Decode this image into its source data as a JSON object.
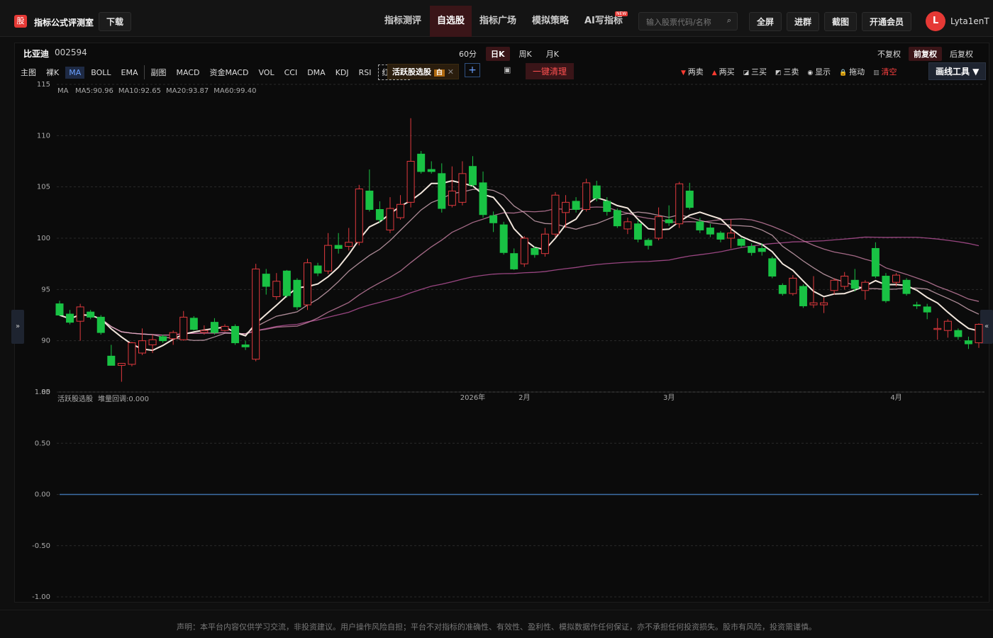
{
  "header": {
    "logo": "股",
    "app_name": "指标公式评测室",
    "download": "下载",
    "nav": [
      "指标测评",
      "自选股",
      "指标广场",
      "模拟策略",
      "AI写指标"
    ],
    "nav_active": 1,
    "nav_badge": "NEW",
    "search_placeholder": "输入股票代码/名称",
    "buttons": [
      "全屏",
      "进群",
      "截图",
      "开通会员"
    ],
    "user_initial": "L",
    "username": "Lyta1enT"
  },
  "toolbar": {
    "stock_name": "比亚迪",
    "stock_code": "002594",
    "periods": [
      "60分",
      "日K",
      "周K",
      "月K"
    ],
    "period_active": 1,
    "adjust": [
      "不复权",
      "前复权",
      "后复权"
    ],
    "adjust_active": 1,
    "indicators": [
      "主图",
      "裸K",
      "MA",
      "BOLL",
      "EMA",
      "副图",
      "MACD",
      "资金MACD",
      "VOL",
      "CCI",
      "DMA",
      "KDJ",
      "RSI",
      "红绿箭"
    ],
    "indicator_active": 2,
    "active_tag": "活跃股选股",
    "active_tag_badge": "白",
    "clear": "一键清理",
    "tools": [
      "两卖",
      "两买",
      "三买",
      "三卖",
      "显示",
      "拖动",
      "清空"
    ],
    "draw_tools": "画线工具 ▼"
  },
  "chart_data": {
    "type": "candlestick",
    "up_color": "#e0393e",
    "down_color": "#19c244",
    "ma_title": "MA",
    "ma_legend": [
      {
        "label": "MA5:90.96",
        "color": "#f2e6dc"
      },
      {
        "label": "MA10:92.65",
        "color": "#e6b8c8"
      },
      {
        "label": "MA20:93.87",
        "color": "#d889b0"
      },
      {
        "label": "MA60:99.40",
        "color": "#c85aa8"
      }
    ],
    "ylim": [
      85,
      115
    ],
    "yticks": [
      85,
      90,
      95,
      100,
      105,
      110,
      115
    ],
    "grid": true,
    "categories": [
      null,
      null,
      null,
      null,
      null,
      null,
      null,
      null,
      null,
      null,
      null,
      null,
      null,
      null,
      null,
      null,
      null,
      null,
      null,
      null,
      null,
      null,
      null,
      null,
      null,
      null,
      null,
      null,
      null,
      null,
      null,
      null,
      null,
      null,
      null,
      null,
      null,
      null,
      null,
      null,
      "2026年",
      null,
      null,
      null,
      null,
      "2月",
      null,
      null,
      null,
      null,
      null,
      null,
      null,
      null,
      null,
      null,
      null,
      null,
      null,
      "3月",
      null,
      null,
      null,
      null,
      null,
      null,
      null,
      null,
      null,
      null,
      null,
      null,
      null,
      null,
      null,
      null,
      null,
      null,
      null,
      null,
      null,
      "4月",
      null,
      null,
      null,
      null,
      null,
      null,
      null,
      null
    ],
    "open": [
      93.6,
      92.6,
      91.9,
      92.8,
      92.3,
      88.5,
      87.6,
      87.7,
      88.8,
      89.6,
      90.4,
      90.2,
      90.1,
      92.2,
      90.8,
      91.8,
      91,
      91.4,
      89.6,
      88.2,
      96.5,
      94.3,
      96.8,
      95.9,
      93.5,
      97.3,
      96.8,
      99.3,
      99.2,
      99.6,
      104.6,
      102.8,
      100.8,
      102,
      103.5,
      108.2,
      106.7,
      106.3,
      103.2,
      103.5,
      107,
      105.4,
      102.2,
      101.3,
      98.5,
      97.5,
      99,
      98.5,
      100.4,
      102.5,
      103.6,
      102.8,
      105.1,
      103.6,
      102.7,
      100.9,
      101.4,
      99.8,
      100,
      101.8,
      101.4,
      104.6,
      101.6,
      101,
      100.5,
      100,
      99.9,
      99.2,
      99,
      98,
      95.4,
      94.6,
      95.3,
      93.5,
      93.5,
      94.9,
      95.3,
      95.9,
      94.9,
      99,
      96.3,
      95.7,
      95.9,
      93.5,
      93.3,
      91.1,
      91,
      91,
      90,
      89.8
    ],
    "high": [
      93.9,
      93,
      93.6,
      93,
      92.5,
      89.6,
      87.8,
      89.9,
      91.2,
      90.6,
      90.6,
      91,
      92.9,
      92.4,
      91.5,
      92.2,
      91.6,
      91.6,
      90,
      97.5,
      97,
      96.6,
      96.9,
      96.1,
      98,
      97.6,
      100.5,
      100.5,
      101,
      105.2,
      106.7,
      103.6,
      104,
      104.2,
      111.7,
      108.5,
      107.5,
      107.3,
      107,
      107.5,
      108,
      106.5,
      102.6,
      101.6,
      99,
      100.2,
      99.2,
      101,
      104.5,
      104.2,
      104,
      105.8,
      105.6,
      104,
      102.9,
      102,
      101.8,
      100,
      103,
      103.2,
      105.5,
      105.4,
      102,
      101.4,
      100.7,
      101.8,
      100.1,
      99.5,
      99.5,
      98.2,
      95.6,
      96.4,
      95.5,
      96.3,
      94.2,
      96.1,
      96.7,
      97,
      95.9,
      99.6,
      96.6,
      96.6,
      96.1,
      93.8,
      93.6,
      92.2,
      92.1,
      91.2,
      90.4,
      91.7
    ],
    "low": [
      92.4,
      91.6,
      90,
      92.1,
      90.6,
      87.6,
      86,
      87.5,
      88.6,
      88.8,
      89.8,
      89.6,
      90,
      91,
      90.6,
      90.6,
      90.9,
      89.6,
      89.1,
      88,
      94.5,
      94,
      94.2,
      93,
      93,
      96.3,
      96.5,
      98.5,
      98.8,
      99.3,
      102.6,
      101.5,
      100.5,
      101.8,
      103,
      106.3,
      106.3,
      102.5,
      103,
      103.2,
      105,
      102,
      100.6,
      98.4,
      96.9,
      97.2,
      98.1,
      98.2,
      100.1,
      101,
      102.5,
      102.6,
      103.6,
      102.2,
      101,
      100.4,
      99.6,
      98.9,
      99.8,
      101.2,
      101,
      102.8,
      100.5,
      100.1,
      99.6,
      99,
      99.1,
      98.3,
      98.3,
      96.1,
      94.4,
      94.4,
      93.2,
      93.2,
      92.7,
      94.5,
      95,
      94.8,
      94,
      96.1,
      93.7,
      95.3,
      94.4,
      93.1,
      92.1,
      90.1,
      90.3,
      90.1,
      89.2,
      89.3
    ],
    "close": [
      92.5,
      91.8,
      93.3,
      92.3,
      90.8,
      87.6,
      87.8,
      89.8,
      90,
      90.1,
      90,
      90.8,
      92.3,
      91.1,
      91,
      90.8,
      91.4,
      89.8,
      89.4,
      97,
      95.3,
      95.8,
      94.4,
      93.3,
      97.6,
      96.6,
      99.3,
      99,
      99.6,
      104.8,
      102.8,
      101.8,
      102.9,
      103.3,
      107.5,
      106.5,
      106.5,
      102.9,
      104.6,
      106.3,
      105.2,
      102.3,
      101.5,
      98.6,
      97,
      100,
      98.4,
      100.4,
      104.2,
      103.5,
      102.8,
      105.4,
      103.9,
      102.6,
      101.2,
      101.6,
      99.9,
      99.3,
      102.1,
      101.5,
      105.3,
      103,
      100.8,
      100.4,
      99.9,
      100.5,
      99.3,
      98.6,
      98.7,
      96.3,
      94.6,
      96.1,
      93.4,
      93.7,
      93.7,
      95.9,
      96.3,
      95.1,
      95.7,
      96.3,
      93.9,
      96.4,
      94.6,
      93.4,
      92.8,
      91.2,
      91.9,
      90.4,
      89.7,
      91.6
    ],
    "sub_chart": {
      "type": "line",
      "title": "活跃股选股",
      "legend": "堆量回调:0.000",
      "color": "#3d6fa8",
      "ylim": [
        -1,
        1
      ],
      "yticks": [
        {
          "value": -1,
          "label": "-1.00"
        },
        {
          "value": -0.5,
          "label": "-0.50"
        },
        {
          "value": 0,
          "label": "0.00"
        },
        {
          "value": 0.5,
          "label": "0.50"
        },
        {
          "value": 1,
          "label": "1.00"
        }
      ],
      "values": [
        0,
        0,
        0,
        0,
        0,
        0,
        0,
        0,
        0,
        0,
        0,
        0,
        0,
        0,
        0,
        0,
        0,
        0,
        0,
        0,
        0,
        0,
        0,
        0,
        0,
        0,
        0,
        0,
        0,
        0,
        0,
        0,
        0,
        0,
        0,
        0,
        0,
        0,
        0,
        0,
        0,
        0,
        0,
        0,
        0,
        0,
        0,
        0,
        0,
        0,
        0,
        0,
        0,
        0,
        0,
        0,
        0,
        0,
        0,
        0,
        0,
        0,
        0,
        0,
        0,
        0,
        0,
        0,
        0,
        0,
        0,
        0,
        0,
        0,
        0,
        0,
        0,
        0,
        0,
        0,
        0,
        0,
        0,
        0,
        0,
        0,
        0,
        0,
        0,
        0
      ]
    }
  },
  "footer": {
    "disclaimer": "声明：本平台内容仅供学习交流，非投资建议。用户操作风险自担；平台不对指标的准确性、有效性、盈利性、模拟数据作任何保证，亦不承担任何投资损失。股市有风险，投资需谨慎。"
  }
}
